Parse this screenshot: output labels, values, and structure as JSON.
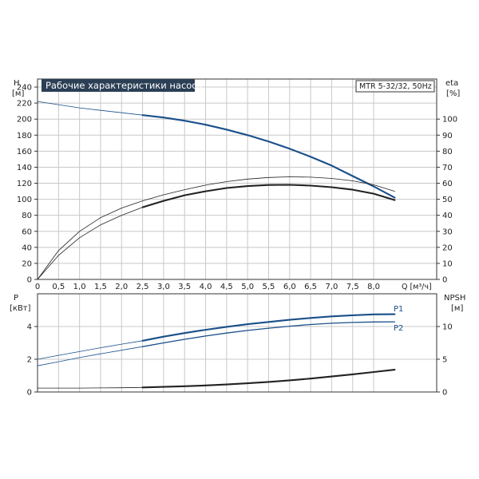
{
  "chart_data": [
    {
      "id": "upper",
      "type": "line",
      "title": "Рабочие характеристики насоса",
      "model_label": "MTR 5-32/32, 50Hz",
      "left_axis": {
        "label": "H",
        "unit": "[м]",
        "range": [
          0,
          250
        ],
        "ticks": [
          0,
          20,
          40,
          60,
          80,
          100,
          120,
          140,
          160,
          180,
          200,
          220,
          240
        ]
      },
      "right_axis": {
        "label": "eta",
        "unit": "[%]",
        "range": [
          0,
          125
        ],
        "ticks": [
          0,
          10,
          20,
          30,
          40,
          50,
          60,
          70,
          80,
          90,
          100
        ]
      },
      "x_axis": {
        "label": "Q [м³/ч]",
        "range": [
          0,
          9.5
        ],
        "ticks": [
          0,
          0.5,
          1.0,
          1.5,
          2.0,
          2.5,
          3.0,
          3.5,
          4.0,
          4.5,
          5.0,
          5.5,
          6.0,
          6.5,
          7.0,
          7.5,
          8.0
        ],
        "tick_labels": [
          "0",
          "0,5",
          "1,0",
          "1,5",
          "2,0",
          "2,5",
          "3,0",
          "3,5",
          "4,0",
          "4,5",
          "5,0",
          "5,5",
          "6,0",
          "6,5",
          "7,0",
          "7,5",
          "8,0"
        ]
      },
      "grid": true,
      "series": [
        {
          "axis": "left",
          "color": "#1a4f8a",
          "style": "thin",
          "x": [
            0,
            0.5,
            1.0,
            1.5,
            2.0,
            2.5
          ],
          "y": [
            222,
            218,
            214,
            211,
            208,
            205
          ]
        },
        {
          "axis": "left",
          "color": "#1a4f8a",
          "style": "thick",
          "x": [
            2.5,
            3.0,
            3.5,
            4.0,
            4.5,
            5.0,
            5.5,
            6.0,
            6.5,
            7.0,
            7.5,
            8.0,
            8.5
          ],
          "y": [
            205,
            202,
            198,
            193,
            187,
            180,
            172,
            163,
            153,
            142,
            129,
            116,
            102
          ]
        },
        {
          "axis": "right",
          "color": "#222222",
          "style": "thin",
          "x": [
            0,
            0.5,
            1.0,
            1.5,
            2.0,
            2.5
          ],
          "y": [
            0,
            15,
            26,
            34,
            40,
            45
          ]
        },
        {
          "axis": "right",
          "color": "#222222",
          "style": "thick",
          "x": [
            2.5,
            3.0,
            3.5,
            4.0,
            4.5,
            5.0,
            5.5,
            6.0,
            6.5,
            7.0,
            7.5,
            8.0,
            8.5
          ],
          "y": [
            45,
            49,
            52.5,
            55,
            57,
            58.2,
            58.9,
            59,
            58.5,
            57.5,
            56,
            53.5,
            49.5
          ]
        },
        {
          "axis": "right",
          "color": "#222222",
          "style": "thin",
          "x": [
            0,
            0.5,
            1.0,
            1.5,
            2.0,
            2.5,
            3.0,
            3.5,
            4.0,
            4.5,
            5.0,
            5.5,
            6.0,
            6.5,
            7.0,
            7.5,
            8.0,
            8.5
          ],
          "y": [
            0,
            18,
            30,
            38.5,
            44.5,
            49,
            52.8,
            56,
            58.8,
            61,
            62.6,
            63.6,
            64,
            63.8,
            63,
            61.5,
            59,
            55
          ]
        }
      ]
    },
    {
      "id": "lower",
      "type": "line",
      "left_axis": {
        "label": "P",
        "unit": "[кВт]",
        "range": [
          0,
          6
        ],
        "ticks": [
          0,
          2,
          4
        ]
      },
      "right_axis": {
        "label": "NPSH",
        "unit": "[м]",
        "range": [
          0,
          15
        ],
        "ticks": [
          0,
          5,
          10
        ]
      },
      "x_axis": {
        "range": [
          0,
          9.5
        ],
        "ticks": [
          0,
          0.5,
          1.0,
          1.5,
          2.0,
          2.5,
          3.0,
          3.5,
          4.0,
          4.5,
          5.0,
          5.5,
          6.0,
          6.5,
          7.0,
          7.5,
          8.0
        ]
      },
      "grid": true,
      "series": [
        {
          "axis": "left",
          "color": "#1a4f8a",
          "style": "thin",
          "x": [
            0,
            0.5,
            1.0,
            1.5,
            2.0,
            2.5
          ],
          "y": [
            2.0,
            2.24,
            2.47,
            2.7,
            2.92,
            3.13
          ]
        },
        {
          "name": "P1",
          "axis": "left",
          "color": "#1a4f8a",
          "style": "thick",
          "x": [
            2.5,
            3.0,
            3.5,
            4.0,
            4.5,
            5.0,
            5.5,
            6.0,
            6.5,
            7.0,
            7.5,
            8.0,
            8.5
          ],
          "y": [
            3.13,
            3.38,
            3.6,
            3.8,
            3.98,
            4.14,
            4.28,
            4.41,
            4.52,
            4.62,
            4.69,
            4.74,
            4.75
          ]
        },
        {
          "axis": "left",
          "color": "#1a4f8a",
          "style": "thin",
          "x": [
            0,
            0.5,
            1.0,
            1.5,
            2.0,
            2.5
          ],
          "y": [
            1.6,
            1.85,
            2.1,
            2.33,
            2.55,
            2.77
          ]
        },
        {
          "name": "P2",
          "axis": "left",
          "color": "#1a4f8a",
          "style": "medium",
          "x": [
            2.5,
            3.0,
            3.5,
            4.0,
            4.5,
            5.0,
            5.5,
            6.0,
            6.5,
            7.0,
            7.5,
            8.0,
            8.5
          ],
          "y": [
            2.77,
            3.0,
            3.22,
            3.42,
            3.6,
            3.76,
            3.9,
            4.02,
            4.12,
            4.2,
            4.25,
            4.28,
            4.29
          ]
        },
        {
          "axis": "right",
          "color": "#222222",
          "style": "thin",
          "x": [
            0,
            0.5,
            1.0,
            1.5,
            2.0,
            2.5
          ],
          "y": [
            0.6,
            0.6,
            0.6,
            0.62,
            0.65,
            0.7
          ]
        },
        {
          "axis": "right",
          "color": "#222222",
          "style": "thick",
          "x": [
            2.5,
            3.0,
            3.5,
            4.0,
            4.5,
            5.0,
            5.5,
            6.0,
            6.5,
            7.0,
            7.5,
            8.0,
            8.5
          ],
          "y": [
            0.7,
            0.78,
            0.88,
            1.0,
            1.15,
            1.33,
            1.54,
            1.78,
            2.05,
            2.36,
            2.7,
            3.05,
            3.4
          ]
        }
      ]
    }
  ]
}
